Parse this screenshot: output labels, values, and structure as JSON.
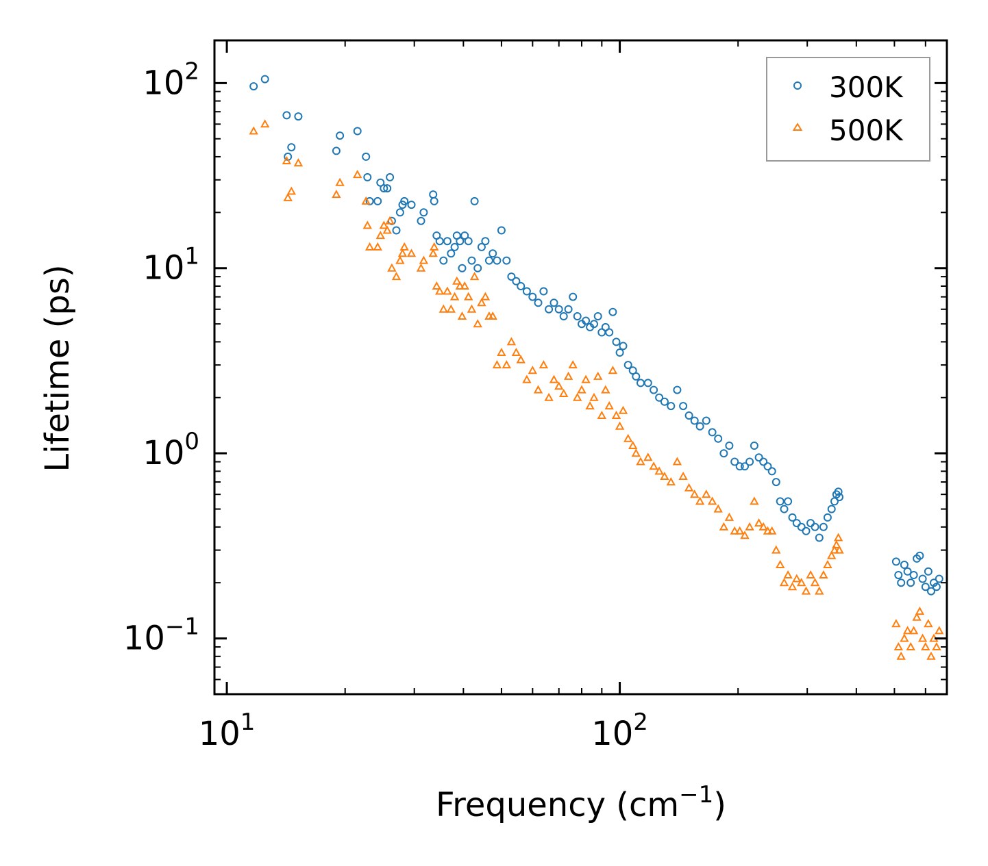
{
  "chart_data": {
    "type": "scatter",
    "title": "",
    "xlabel": "Frequency (cm",
    "xlabel_sup": "−1",
    "xlabel_close": ")",
    "ylabel": "Lifetime (ps)",
    "xscale": "log",
    "yscale": "log",
    "xlim": [
      9.3,
      680
    ],
    "ylim": [
      0.05,
      170
    ],
    "grid": false,
    "legend_position": "top-right",
    "x_ticks": [
      {
        "value": 10,
        "base": "10",
        "exp": "1"
      },
      {
        "value": 100,
        "base": "10",
        "exp": "2"
      }
    ],
    "y_ticks": [
      {
        "value": 0.1,
        "base": "10",
        "exp": "−1"
      },
      {
        "value": 1,
        "base": "10",
        "exp": "0"
      },
      {
        "value": 10,
        "base": "10",
        "exp": "1"
      },
      {
        "value": 100,
        "base": "10",
        "exp": "2"
      }
    ],
    "series": [
      {
        "name": "300K",
        "marker": "circle",
        "color": "#1f77b4",
        "x": [
          11.7,
          12.5,
          14.2,
          14.3,
          14.6,
          15.2,
          19.0,
          19.4,
          21.5,
          22.6,
          22.8,
          23.1,
          24.2,
          24.6,
          25.1,
          25.6,
          26.0,
          26.3,
          27.0,
          27.6,
          28.0,
          28.3,
          29.5,
          31.2,
          31.7,
          33.5,
          33.7,
          34.2,
          34.8,
          35.6,
          36.4,
          37.2,
          38.0,
          38.5,
          39.2,
          39.7,
          40.3,
          41.2,
          42.0,
          42.7,
          43.5,
          44.5,
          45.5,
          46.5,
          47.5,
          48.7,
          50.0,
          51.5,
          53.0,
          54.5,
          56.0,
          58.0,
          60.0,
          62.0,
          64.0,
          66.0,
          68.0,
          70.0,
          72.0,
          74.0,
          76.0,
          78.0,
          80.0,
          82.0,
          84.0,
          86.0,
          88.0,
          90.0,
          92.0,
          94.0,
          96.0,
          98.0,
          100.0,
          102.0,
          105.0,
          108.0,
          110.0,
          113.0,
          118.0,
          122.0,
          126.0,
          130.0,
          135.0,
          140.0,
          145.0,
          150.0,
          155.0,
          160.0,
          166.0,
          172.0,
          178.0,
          184.0,
          190.0,
          196.0,
          202.0,
          208.0,
          214.0,
          220.0,
          226.0,
          232.0,
          238.0,
          244.0,
          250.0,
          256.0,
          262.0,
          268.0,
          275.0,
          282.0,
          290.0,
          298.0,
          306.0,
          314.0,
          322.0,
          330.0,
          338.0,
          346.0,
          352.0,
          356.0,
          360.0,
          362.0,
          505.0,
          512.0,
          520.0,
          530.0,
          540.0,
          550.0,
          560.0,
          570.0,
          580.0,
          590.0,
          600.0,
          610.0,
          620.0,
          630.0,
          640.0,
          650.0
        ],
        "y": [
          96,
          105,
          67,
          40,
          45,
          66,
          43,
          52,
          55,
          40,
          31,
          23,
          23,
          29,
          27,
          27,
          31,
          18,
          16,
          20,
          22,
          23,
          22,
          18,
          20,
          25,
          23,
          15,
          14,
          11,
          14,
          12,
          13,
          15,
          14,
          10,
          15,
          14,
          11,
          23,
          10,
          13,
          14,
          11,
          12,
          11,
          16,
          11,
          9,
          8.5,
          8,
          7.5,
          7,
          6.5,
          7.5,
          6,
          6.5,
          6,
          5.5,
          6,
          7,
          5.5,
          5,
          5.2,
          4.8,
          5,
          5.5,
          4.5,
          4.8,
          4.5,
          5.8,
          4,
          3.5,
          3.8,
          3,
          2.8,
          2.6,
          2.4,
          2.4,
          2.2,
          2,
          1.9,
          1.8,
          2.2,
          1.8,
          1.6,
          1.5,
          1.4,
          1.5,
          1.3,
          1.2,
          1.0,
          1.1,
          0.9,
          0.85,
          0.85,
          0.9,
          1.1,
          0.95,
          0.9,
          0.85,
          0.8,
          0.7,
          0.55,
          0.5,
          0.55,
          0.45,
          0.42,
          0.4,
          0.38,
          0.42,
          0.4,
          0.35,
          0.4,
          0.45,
          0.5,
          0.55,
          0.6,
          0.62,
          0.58,
          0.26,
          0.22,
          0.2,
          0.25,
          0.23,
          0.2,
          0.22,
          0.27,
          0.28,
          0.21,
          0.19,
          0.23,
          0.18,
          0.2,
          0.19,
          0.21
        ]
      },
      {
        "name": "500K",
        "marker": "triangle",
        "color": "#ff7f0e",
        "x": [
          11.7,
          12.5,
          14.2,
          14.3,
          14.6,
          15.2,
          19.0,
          19.4,
          21.5,
          22.6,
          22.8,
          23.1,
          24.2,
          24.6,
          25.1,
          25.6,
          26.0,
          26.3,
          27.0,
          27.6,
          28.0,
          28.3,
          29.5,
          31.2,
          31.7,
          33.5,
          33.7,
          34.2,
          34.8,
          35.6,
          36.4,
          37.2,
          38.0,
          38.5,
          39.2,
          39.7,
          40.3,
          41.2,
          42.0,
          42.7,
          43.5,
          44.5,
          45.5,
          46.5,
          47.5,
          48.7,
          50.0,
          51.5,
          53.0,
          54.5,
          56.0,
          58.0,
          60.0,
          62.0,
          64.0,
          66.0,
          68.0,
          70.0,
          72.0,
          74.0,
          76.0,
          78.0,
          80.0,
          82.0,
          84.0,
          86.0,
          88.0,
          90.0,
          92.0,
          94.0,
          96.0,
          98.0,
          100.0,
          102.0,
          105.0,
          108.0,
          110.0,
          113.0,
          118.0,
          122.0,
          126.0,
          130.0,
          135.0,
          140.0,
          145.0,
          150.0,
          155.0,
          160.0,
          166.0,
          172.0,
          178.0,
          184.0,
          190.0,
          196.0,
          202.0,
          208.0,
          214.0,
          220.0,
          226.0,
          232.0,
          238.0,
          244.0,
          250.0,
          256.0,
          262.0,
          268.0,
          275.0,
          282.0,
          290.0,
          298.0,
          306.0,
          314.0,
          322.0,
          330.0,
          338.0,
          346.0,
          352.0,
          356.0,
          360.0,
          362.0,
          505.0,
          512.0,
          520.0,
          530.0,
          540.0,
          550.0,
          560.0,
          570.0,
          580.0,
          590.0,
          600.0,
          610.0,
          620.0,
          630.0,
          640.0,
          650.0
        ],
        "y": [
          55,
          60,
          38,
          24,
          26,
          37,
          25,
          29,
          32,
          23,
          17,
          13,
          13,
          15,
          17,
          16,
          18,
          10,
          9,
          11,
          12,
          13,
          12,
          10,
          11,
          12,
          13,
          8,
          7.5,
          6,
          7.5,
          6,
          7,
          8.5,
          8,
          5.5,
          8,
          7,
          6,
          9,
          5,
          6.5,
          7,
          5.5,
          5.5,
          3,
          3.5,
          3,
          4,
          3.5,
          3.2,
          2.5,
          2.8,
          2.2,
          3,
          2,
          2.5,
          2.3,
          2.1,
          2.6,
          3,
          2,
          2.2,
          2.5,
          1.8,
          2,
          2.6,
          1.6,
          2.2,
          1.8,
          2.8,
          1.6,
          1.4,
          1.7,
          1.2,
          1.1,
          1.0,
          0.9,
          0.95,
          0.85,
          0.8,
          0.75,
          0.7,
          0.9,
          0.75,
          0.65,
          0.6,
          0.55,
          0.6,
          0.55,
          0.5,
          0.4,
          0.45,
          0.38,
          0.38,
          0.36,
          0.4,
          0.55,
          0.42,
          0.4,
          0.38,
          0.38,
          0.3,
          0.25,
          0.2,
          0.22,
          0.19,
          0.21,
          0.2,
          0.18,
          0.22,
          0.2,
          0.18,
          0.22,
          0.25,
          0.28,
          0.3,
          0.32,
          0.35,
          0.3,
          0.12,
          0.09,
          0.08,
          0.1,
          0.11,
          0.09,
          0.11,
          0.13,
          0.14,
          0.1,
          0.09,
          0.12,
          0.08,
          0.1,
          0.09,
          0.11
        ]
      }
    ]
  }
}
